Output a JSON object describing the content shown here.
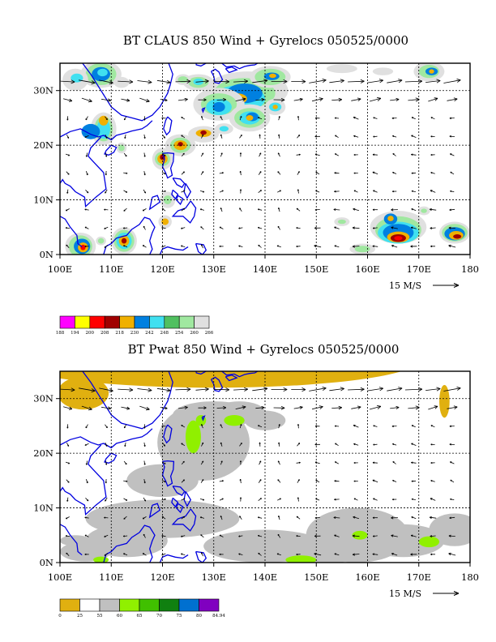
{
  "chart_data": [
    {
      "type": "heatmap",
      "title": "BT CLAUS 850 Wind + Gyrelocs 050525/0000",
      "xlim": [
        100,
        180
      ],
      "ylim": [
        0,
        35
      ],
      "x_ticks": [
        100,
        110,
        120,
        130,
        140,
        150,
        160,
        170,
        180
      ],
      "x_tick_labels": [
        "100E",
        "110E",
        "120E",
        "130E",
        "140E",
        "150E",
        "160E",
        "170E",
        "180"
      ],
      "y_ticks": [
        0,
        10,
        20,
        30
      ],
      "y_tick_labels": [
        "0N",
        "10N",
        "20N",
        "30N"
      ],
      "grid": true,
      "reference_vector_label": "15 M/S",
      "colorbar": {
        "placement": "bottom-left",
        "labels": [
          "188",
          "194",
          "200",
          "208",
          "218",
          "230",
          "242",
          "248",
          "254",
          "260",
          "266"
        ],
        "colors": [
          "#ff00ff",
          "#ffff00",
          "#ff0000",
          "#a00000",
          "#f0b000",
          "#0080e0",
          "#40e0f0",
          "#50c060",
          "#a0e8a0",
          "#e0e0e0"
        ]
      }
    },
    {
      "type": "heatmap",
      "title": "BT Pwat 850 Wind + Gyrelocs 050525/0000",
      "xlim": [
        100,
        180
      ],
      "ylim": [
        0,
        35
      ],
      "x_ticks": [
        100,
        110,
        120,
        130,
        140,
        150,
        160,
        170,
        180
      ],
      "x_tick_labels": [
        "100E",
        "110E",
        "120E",
        "130E",
        "140E",
        "150E",
        "160E",
        "170E",
        "180"
      ],
      "y_ticks": [
        0,
        10,
        20,
        30
      ],
      "y_tick_labels": [
        "0N",
        "10N",
        "20N",
        "30N"
      ],
      "grid": true,
      "reference_vector_label": "15 M/S",
      "colorbar": {
        "placement": "bottom-left",
        "labels": [
          "0",
          "25",
          "55",
          "60",
          "65",
          "70",
          "75",
          "80",
          "84.94"
        ],
        "colors": [
          "#e0b010",
          "#ffffff",
          "#c0c0c0",
          "#90f000",
          "#40c000",
          "#108010",
          "#0070d0",
          "#8000c0"
        ]
      }
    }
  ],
  "colors": {
    "coastline": "#0000e0",
    "grid": "#000000",
    "vector": "#000000"
  }
}
